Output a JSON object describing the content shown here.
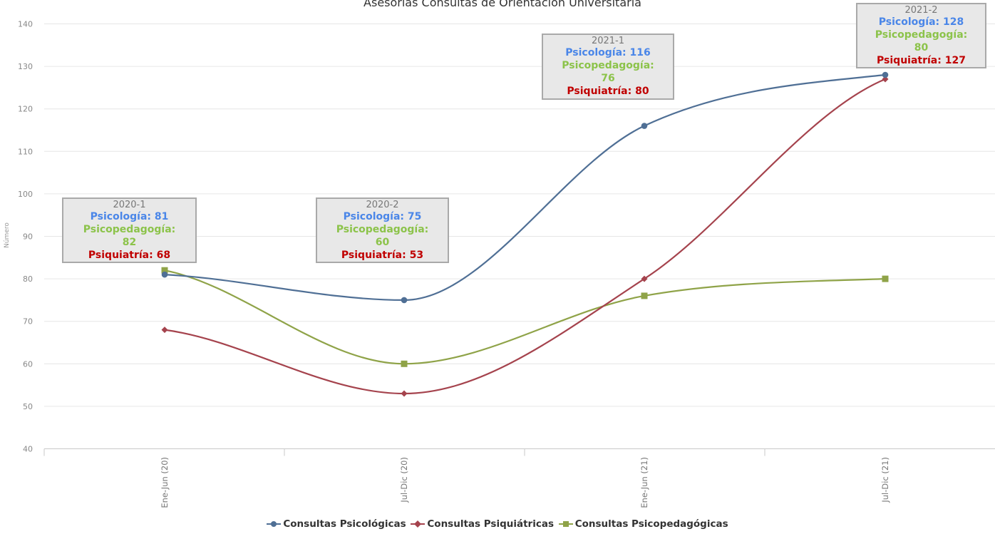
{
  "chart_data": {
    "type": "line",
    "title": "Asesorías Consultas de Orientación Universitaria",
    "ylabel": "Número",
    "xlabel": "",
    "categories": [
      "Ene-Jun (20)",
      "Jul-Dic (20)",
      "Ene-Jun (21)",
      "Jul-Dic (21)"
    ],
    "ylim": [
      40,
      140
    ],
    "yticks": [
      40,
      50,
      60,
      70,
      80,
      90,
      100,
      110,
      120,
      130,
      140
    ],
    "grid": true,
    "legend_position": "bottom",
    "series": [
      {
        "name": "Consultas Psicológicas",
        "values": [
          81,
          75,
          116,
          128
        ],
        "color": "#4f6f95",
        "marker": "circle"
      },
      {
        "name": "Consultas Psiquiátricas",
        "values": [
          68,
          53,
          80,
          127
        ],
        "color": "#a5434d",
        "marker": "diamond"
      },
      {
        "name": "Consultas Psicopedagógicas",
        "values": [
          82,
          60,
          76,
          80
        ],
        "color": "#8fa348",
        "marker": "square"
      }
    ],
    "annotations": [
      {
        "period": "2020-1",
        "psicologia": "Psicología: 81",
        "psicopedagogia_a": "Psicopedagogía:",
        "psicopedagogia_b": "82",
        "psiquiatria": "Psiquiatría: 68"
      },
      {
        "period": "2020-2",
        "psicologia": "Psicología: 75",
        "psicopedagogia_a": "Psicopedagogía:",
        "psicopedagogia_b": "60",
        "psiquiatria": "Psiquiatría: 53"
      },
      {
        "period": "2021-1",
        "psicologia": "Psicología: 116",
        "psicopedagogia_a": "Psicopedagogía:",
        "psicopedagogia_b": "76",
        "psiquiatria": "Psiquiatría: 80"
      },
      {
        "period": "2021-2",
        "psicologia": "Psicología: 128",
        "psicopedagogia_a": "Psicopedagogía:",
        "psicopedagogia_b": "80",
        "psiquiatria": "Psiquiatría: 127"
      }
    ]
  },
  "colors": {
    "grid": "#e6e6e6",
    "axis_text": "#666666",
    "annotation_bg": "#e8e8e8",
    "annotation_border": "#a9a9a9",
    "psicologia_text": "#4a86e8",
    "psicopedagogia_text": "#8cc34a",
    "psiquiatria_text": "#c00000"
  }
}
